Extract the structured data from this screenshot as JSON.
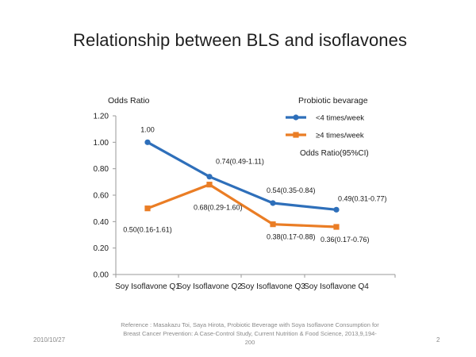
{
  "slide": {
    "title": "Relationship between BLS and isoflavones",
    "reference_line1": "Reference : Masakazu Toi, Saya Hirota, Probiotic Beverage with Soya Isoflavone Consumption for",
    "reference_line2": "Breast Cancer Prevention: A Case-Control Study, Current Nutrition & Food Science, 2013,9,194-200",
    "date": "2010/10/27",
    "page_number": "2"
  },
  "chart_data": {
    "type": "line",
    "ylabel": "Odds Ratio",
    "xlabel": "",
    "ylim": [
      0,
      1.2
    ],
    "yticks": [
      0.0,
      0.2,
      0.4,
      0.6,
      0.8,
      1.0,
      1.2
    ],
    "ytick_labels": [
      "0.00",
      "0.20",
      "0.40",
      "0.60",
      "0.80",
      "1.00",
      "1.20"
    ],
    "categories": [
      "Soy Isoflavone Q1",
      "Soy Isoflavone Q2",
      "Soy Isoflavone Q3",
      "Soy Isoflavone Q4"
    ],
    "legend_title": "Probiotic bevarage",
    "annotation": "Odds Ratio(95%CI)",
    "series": [
      {
        "name": "<4 times/week",
        "color": "#2e6fba",
        "marker": "circle",
        "values": [
          1.0,
          0.74,
          0.54,
          0.49
        ],
        "labels": [
          "1.00",
          "0.74(0.49-1.11)",
          "0.54(0.35-0.84)",
          "0.49(0.31-0.77)"
        ]
      },
      {
        "name": "≥4 times/week",
        "color": "#ea7d25",
        "marker": "square",
        "values": [
          0.5,
          0.68,
          0.38,
          0.36
        ],
        "labels": [
          "0.50(0.16-1.61)",
          "0.68(0.29-1.60)",
          "0.38(0.17-0.88)",
          "0.36(0.17-0.76)"
        ]
      }
    ]
  }
}
